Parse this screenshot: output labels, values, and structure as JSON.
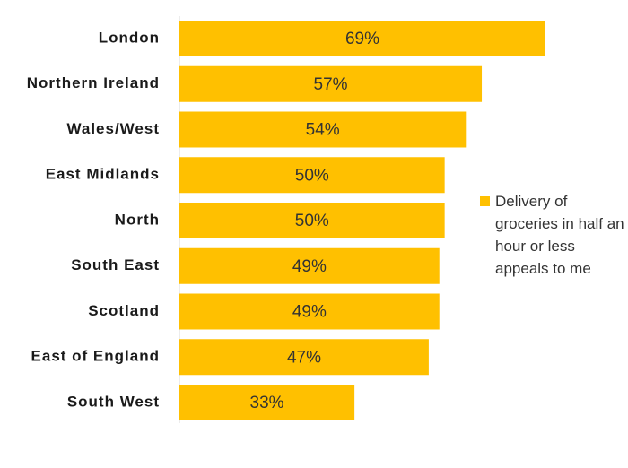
{
  "chart_data": {
    "type": "bar",
    "orientation": "horizontal",
    "categories": [
      "London",
      "Northern Ireland",
      "Wales/West",
      "East Midlands",
      "North",
      "South East",
      "Scotland",
      "East of England",
      "South West"
    ],
    "series": [
      {
        "name": "Delivery of groceries in half an hour or less appeals to me",
        "color": "#ffc000",
        "values": [
          69,
          57,
          54,
          50,
          50,
          49,
          49,
          47,
          33
        ],
        "value_labels": [
          "69%",
          "57%",
          "54%",
          "50%",
          "50%",
          "49%",
          "49%",
          "47%",
          "33%"
        ]
      }
    ]
  }
}
